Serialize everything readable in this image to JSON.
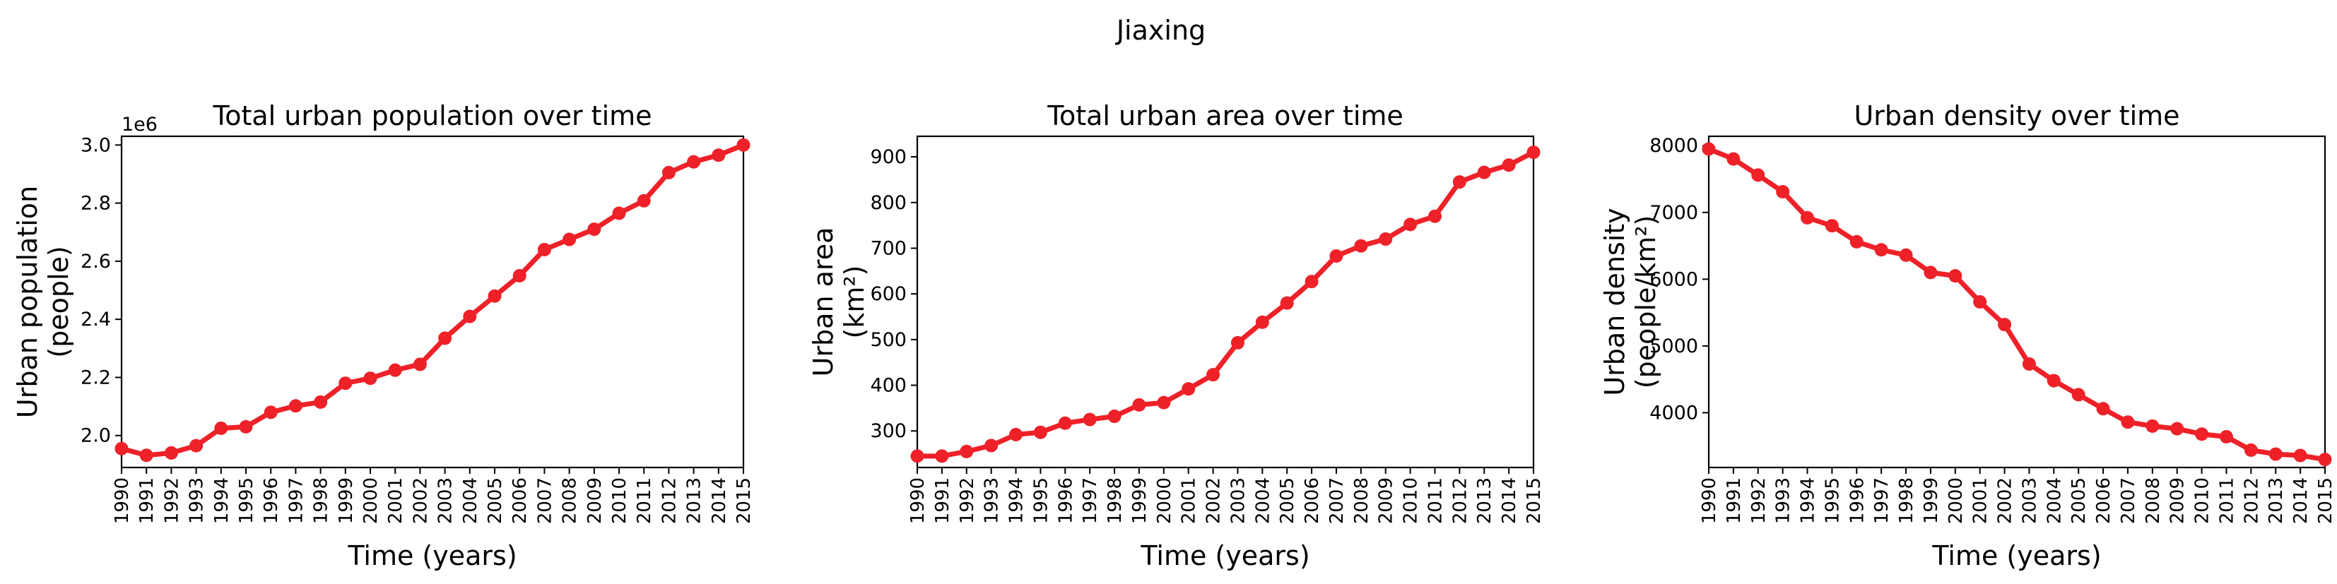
{
  "figure_title": "Jiaxing",
  "colors": {
    "line": "#ee2028",
    "axis": "#000000",
    "background": "#ffffff"
  },
  "chart_data": [
    {
      "type": "line",
      "title": "Total urban population over time",
      "xlabel": "Time (years)",
      "ylabel": [
        "Urban population",
        "(people)"
      ],
      "offset_label": "1e6",
      "x": [
        1990,
        1991,
        1992,
        1993,
        1994,
        1995,
        1996,
        1997,
        1998,
        1999,
        2000,
        2001,
        2002,
        2003,
        2004,
        2005,
        2006,
        2007,
        2008,
        2009,
        2010,
        2011,
        2012,
        2013,
        2014,
        2015
      ],
      "values": [
        1.955,
        1.932,
        1.94,
        1.965,
        2.025,
        2.03,
        2.08,
        2.102,
        2.115,
        2.18,
        2.197,
        2.225,
        2.245,
        2.335,
        2.41,
        2.48,
        2.55,
        2.64,
        2.675,
        2.71,
        2.765,
        2.808,
        2.905,
        2.942,
        2.965,
        3.0
      ],
      "xlim": [
        1990,
        2015
      ],
      "ylim": [
        1.89,
        3.03
      ],
      "yticks": [
        2.0,
        2.2,
        2.4,
        2.6,
        2.8,
        3.0
      ],
      "ytick_labels": [
        "2.0",
        "2.2",
        "2.4",
        "2.6",
        "2.8",
        "3.0"
      ],
      "xtick_labels": [
        "1990",
        "1991",
        "1992",
        "1993",
        "1994",
        "1995",
        "1996",
        "1997",
        "1998",
        "1999",
        "2000",
        "2001",
        "2002",
        "2003",
        "2004",
        "2005",
        "2006",
        "2007",
        "2008",
        "2009",
        "2010",
        "2011",
        "2012",
        "2013",
        "2014",
        "2015"
      ]
    },
    {
      "type": "line",
      "title": "Total urban area over time",
      "xlabel": "Time (years)",
      "ylabel": [
        "Urban area",
        "(km²)"
      ],
      "x": [
        1990,
        1991,
        1992,
        1993,
        1994,
        1995,
        1996,
        1997,
        1998,
        1999,
        2000,
        2001,
        2002,
        2003,
        2004,
        2005,
        2006,
        2007,
        2008,
        2009,
        2010,
        2011,
        2012,
        2013,
        2014,
        2015
      ],
      "values": [
        245,
        245,
        255,
        268,
        292,
        297,
        317,
        325,
        332,
        357,
        362,
        392,
        423,
        493,
        538,
        580,
        627,
        683,
        705,
        720,
        752,
        770,
        845,
        866,
        882,
        910
      ],
      "xlim": [
        1990,
        2015
      ],
      "ylim": [
        220,
        945
      ],
      "yticks": [
        300,
        400,
        500,
        600,
        700,
        800,
        900
      ],
      "ytick_labels": [
        "300",
        "400",
        "500",
        "600",
        "700",
        "800",
        "900"
      ],
      "xtick_labels": [
        "1990",
        "1991",
        "1992",
        "1993",
        "1994",
        "1995",
        "1996",
        "1997",
        "1998",
        "1999",
        "2000",
        "2001",
        "2002",
        "2003",
        "2004",
        "2005",
        "2006",
        "2007",
        "2008",
        "2009",
        "2010",
        "2011",
        "2012",
        "2013",
        "2014",
        "2015"
      ]
    },
    {
      "type": "line",
      "title": "Urban density over time",
      "xlabel": "Time (years)",
      "ylabel": [
        "Urban density",
        "(people/km²)"
      ],
      "x": [
        1990,
        1991,
        1992,
        1993,
        1994,
        1995,
        1996,
        1997,
        1998,
        1999,
        2000,
        2001,
        2002,
        2003,
        2004,
        2005,
        2006,
        2007,
        2008,
        2009,
        2010,
        2011,
        2012,
        2013,
        2014,
        2015
      ],
      "values": [
        7950,
        7800,
        7560,
        7310,
        6920,
        6800,
        6560,
        6440,
        6360,
        6100,
        6050,
        5660,
        5320,
        4730,
        4480,
        4270,
        4060,
        3860,
        3800,
        3760,
        3680,
        3640,
        3440,
        3380,
        3360,
        3300
      ],
      "xlim": [
        1990,
        2015
      ],
      "ylim": [
        3180,
        8140
      ],
      "yticks": [
        4000,
        5000,
        6000,
        7000,
        8000
      ],
      "ytick_labels": [
        "4000",
        "5000",
        "6000",
        "7000",
        "8000"
      ],
      "xtick_labels": [
        "1990",
        "1991",
        "1992",
        "1993",
        "1994",
        "1995",
        "1996",
        "1997",
        "1998",
        "1999",
        "2000",
        "2001",
        "2002",
        "2003",
        "2004",
        "2005",
        "2006",
        "2007",
        "2008",
        "2009",
        "2010",
        "2011",
        "2012",
        "2013",
        "2014",
        "2015"
      ]
    }
  ]
}
